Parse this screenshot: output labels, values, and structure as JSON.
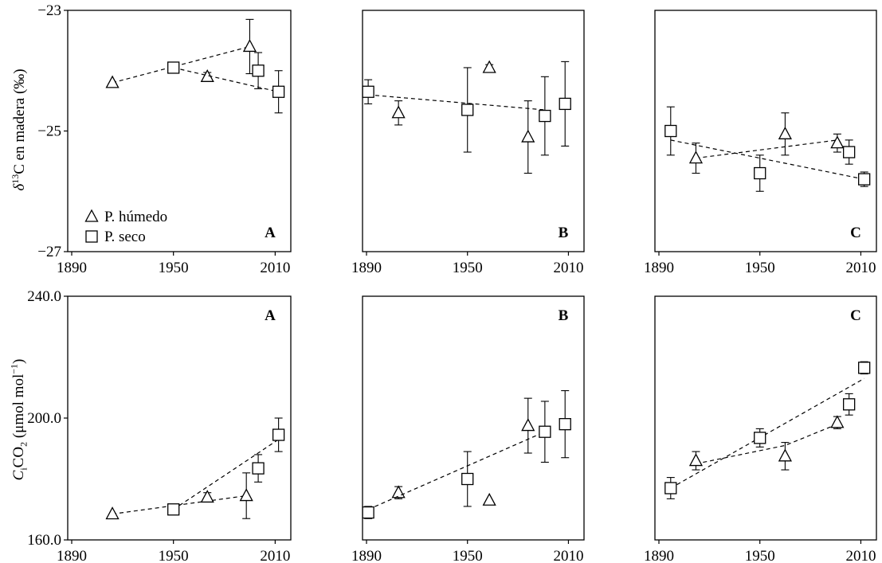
{
  "figure": {
    "ylabel_top": {
      "prefix": "δ",
      "sup": "13",
      "rest": "C en madera (‰)"
    },
    "ylabel_bottom": {
      "c": "C",
      "c_sub": "i",
      "co": "CO",
      "co_sub": "2",
      "rest": " (μmol mol",
      "exp": "−1",
      "close": ")"
    },
    "legend": {
      "wet": "P. húmedo",
      "dry": "P. seco"
    },
    "top_yticks": [
      "−23",
      "−25",
      "−27"
    ],
    "bottom_yticks": [
      "240.0",
      "200.0",
      "160.0"
    ],
    "xticks": [
      "1890",
      "1950",
      "2010"
    ]
  },
  "chart_data": [
    {
      "type": "scatter",
      "panel": "A",
      "row": "top",
      "xlim": [
        1890,
        2015
      ],
      "ylim": [
        -27,
        -23
      ],
      "series": [
        {
          "name": "P. húmedo",
          "marker": "triangle",
          "x": [
            1914,
            1970,
            1995
          ],
          "y": [
            -24.2,
            -24.1,
            -23.6
          ],
          "err": [
            0,
            0.07,
            0.45
          ],
          "trend": [
            [
              1914,
              -24.2
            ],
            [
              1995,
              -23.6
            ]
          ]
        },
        {
          "name": "P. seco",
          "marker": "square",
          "x": [
            1950,
            2000,
            2012
          ],
          "y": [
            -23.95,
            -24.0,
            -24.35
          ],
          "err": [
            0.06,
            0.3,
            0.35
          ],
          "trend": [
            [
              1950,
              -23.95
            ],
            [
              2012,
              -24.35
            ]
          ]
        }
      ]
    },
    {
      "type": "scatter",
      "panel": "B",
      "row": "top",
      "xlim": [
        1890,
        2015
      ],
      "ylim": [
        -27,
        -23
      ],
      "series": [
        {
          "name": "P. húmedo",
          "marker": "triangle",
          "x": [
            1909,
            1963,
            1986
          ],
          "y": [
            -24.7,
            -23.95,
            -25.1
          ],
          "err": [
            0.2,
            0.05,
            0.6
          ],
          "trend": null
        },
        {
          "name": "P. seco",
          "marker": "square",
          "x": [
            1891,
            1950,
            1996,
            2008
          ],
          "y": [
            -24.35,
            -24.65,
            -24.75,
            -24.55
          ],
          "err": [
            0.2,
            0.7,
            0.65,
            0.7
          ],
          "trend": [
            [
              1891,
              -24.4
            ],
            [
              1996,
              -24.65
            ]
          ]
        }
      ]
    },
    {
      "type": "scatter",
      "panel": "C",
      "row": "top",
      "xlim": [
        1890,
        2015
      ],
      "ylim": [
        -27,
        -23
      ],
      "series": [
        {
          "name": "P. húmedo",
          "marker": "triangle",
          "x": [
            1912,
            1965,
            1996
          ],
          "y": [
            -25.45,
            -25.05,
            -25.2
          ],
          "err": [
            0.25,
            0.35,
            0.15
          ],
          "trend": [
            [
              1912,
              -25.45
            ],
            [
              1996,
              -25.15
            ]
          ]
        },
        {
          "name": "P. seco",
          "marker": "square",
          "x": [
            1897,
            1950,
            2003,
            2012
          ],
          "y": [
            -25.0,
            -25.7,
            -25.35,
            -25.8
          ],
          "err": [
            0.4,
            0.3,
            0.2,
            0.12
          ],
          "trend": [
            [
              1897,
              -25.15
            ],
            [
              2012,
              -25.8
            ]
          ]
        }
      ]
    },
    {
      "type": "scatter",
      "panel": "A",
      "row": "bottom",
      "xlim": [
        1890,
        2015
      ],
      "ylim": [
        160,
        240
      ],
      "series": [
        {
          "name": "P. húmedo",
          "marker": "triangle",
          "x": [
            1914,
            1970,
            1993
          ],
          "y": [
            168.5,
            174,
            174.5
          ],
          "err": [
            0,
            1.5,
            7.5
          ],
          "trend": [
            [
              1914,
              168.5
            ],
            [
              1993,
              174.5
            ]
          ]
        },
        {
          "name": "P. seco",
          "marker": "square",
          "x": [
            1950,
            2000,
            2012
          ],
          "y": [
            170,
            183.5,
            194.5
          ],
          "err": [
            1,
            4.5,
            5.5
          ],
          "trend": [
            [
              1950,
              170
            ],
            [
              2012,
              193
            ]
          ]
        }
      ]
    },
    {
      "type": "scatter",
      "panel": "B",
      "row": "bottom",
      "xlim": [
        1890,
        2015
      ],
      "ylim": [
        160,
        240
      ],
      "series": [
        {
          "name": "P. húmedo",
          "marker": "triangle",
          "x": [
            1909,
            1963,
            1986
          ],
          "y": [
            175.5,
            173,
            197.5
          ],
          "err": [
            2,
            0,
            9
          ],
          "trend": null
        },
        {
          "name": "P. seco",
          "marker": "square",
          "x": [
            1891,
            1950,
            1996,
            2008
          ],
          "y": [
            169,
            180,
            195.5,
            198
          ],
          "err": [
            2,
            9,
            10,
            11
          ],
          "trend": [
            [
              1891,
              170
            ],
            [
              1996,
              195.5
            ]
          ]
        }
      ]
    },
    {
      "type": "scatter",
      "panel": "C",
      "row": "bottom",
      "xlim": [
        1890,
        2015
      ],
      "ylim": [
        160,
        240
      ],
      "series": [
        {
          "name": "P. húmedo",
          "marker": "triangle",
          "x": [
            1912,
            1965,
            1996
          ],
          "y": [
            186,
            187.5,
            198.5
          ],
          "err": [
            3,
            4.5,
            2
          ],
          "trend": [
            [
              1912,
              185
            ],
            [
              1965,
              191
            ],
            [
              1996,
              198
            ]
          ]
        },
        {
          "name": "P. seco",
          "marker": "square",
          "x": [
            1897,
            1950,
            2003,
            2012
          ],
          "y": [
            177,
            193.5,
            204.5,
            216.5
          ],
          "err": [
            3.5,
            3,
            3.5,
            2
          ],
          "trend": [
            [
              1897,
              177
            ],
            [
              2012,
              213
            ]
          ]
        }
      ]
    }
  ]
}
